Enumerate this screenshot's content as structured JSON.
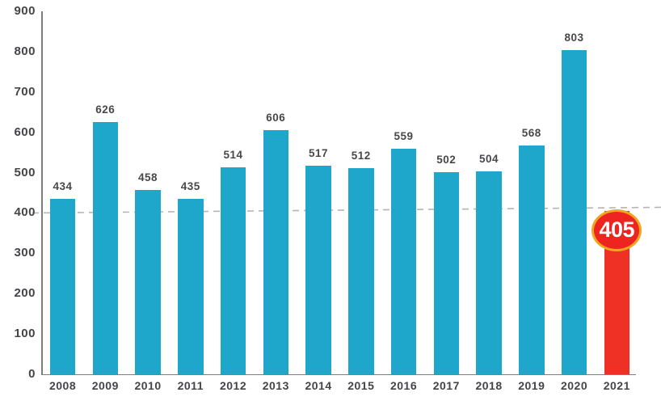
{
  "chart_data": {
    "type": "bar",
    "title": "",
    "xlabel": "",
    "ylabel": "",
    "categories": [
      "2008",
      "2009",
      "2010",
      "2011",
      "2012",
      "2013",
      "2014",
      "2015",
      "2016",
      "2017",
      "2018",
      "2019",
      "2020",
      "2021"
    ],
    "values": [
      434,
      626,
      458,
      435,
      514,
      606,
      517,
      512,
      559,
      502,
      504,
      568,
      803,
      405
    ],
    "ylim": [
      0,
      900
    ],
    "yticks": [
      0,
      100,
      200,
      300,
      400,
      500,
      600,
      700,
      800,
      900
    ],
    "grid": "off",
    "legend": "none",
    "highlight": {
      "index": 13,
      "value": 405
    },
    "badge": {
      "value": "405"
    },
    "trendline": {
      "style": "dashed",
      "start_value": 400,
      "end_value": 414
    },
    "colors": {
      "bar": "#1fa6cb",
      "highlight_bar": "#ee3124",
      "badge_fill": "#ee2420",
      "badge_ring": "#f2a51d",
      "badge_text": "#ffffff",
      "value_label": "#47484a",
      "axis_label": "#454549",
      "axis_line": "#7d7d7d",
      "trendline": "#b5b5b5"
    }
  }
}
